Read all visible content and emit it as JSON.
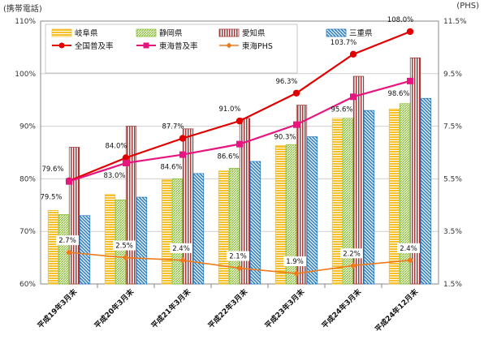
{
  "units": {
    "left": "(携帯電話)",
    "right": "(PHS)"
  },
  "colors": {
    "gifu": "#f5c02a",
    "shizuoka": "#8fc23f",
    "aichi": "#a33a3a",
    "mie": "#2f7fc1",
    "national": "#e00000",
    "tokai": "#e6157f",
    "tokai_phs": "#ee7a1b"
  },
  "chart_data": {
    "type": "bar",
    "categories": [
      "平成19年3月末",
      "平成20年3月末",
      "平成21年3月末",
      "平成22年3月末",
      "平成23年3月末",
      "平成24年3月末",
      "平成24年12月末"
    ],
    "ylim": [
      60,
      110
    ],
    "y_ticks": [
      "60%",
      "70%",
      "80%",
      "90%",
      "100%",
      "110%"
    ],
    "y2lim": [
      1.5,
      11.5
    ],
    "y2_ticks": [
      "1.5%",
      "3.5%",
      "5.5%",
      "7.5%",
      "9.5%",
      "11.5%"
    ],
    "grid": true,
    "legend_position": "top",
    "series": [
      {
        "name": "岐阜県",
        "key": "gifu",
        "kind": "bar",
        "axis": "left",
        "values": [
          74.0,
          77.0,
          79.8,
          81.5,
          86.3,
          91.5,
          93.3
        ]
      },
      {
        "name": "静岡県",
        "key": "shizuoka",
        "kind": "bar",
        "axis": "left",
        "values": [
          73.2,
          76.0,
          80.0,
          82.0,
          86.5,
          91.5,
          94.3
        ]
      },
      {
        "name": "愛知県",
        "key": "aichi",
        "kind": "bar",
        "axis": "left",
        "values": [
          86.0,
          90.0,
          89.5,
          91.5,
          94.0,
          99.5,
          103.0
        ]
      },
      {
        "name": "三重県",
        "key": "mie",
        "kind": "bar",
        "axis": "left",
        "values": [
          73.0,
          76.5,
          81.0,
          83.3,
          88.0,
          93.0,
          95.3
        ]
      },
      {
        "name": "全国普及率",
        "key": "national",
        "kind": "line",
        "axis": "left",
        "values": [
          79.6,
          84.0,
          87.7,
          91.0,
          96.3,
          103.7,
          108.0
        ],
        "labels": [
          "79.6%",
          "84.0%",
          "87.7%",
          "91.0%",
          "96.3%",
          "103.7%",
          "108.0%"
        ]
      },
      {
        "name": "東海普及率",
        "key": "tokai",
        "kind": "line",
        "axis": "left",
        "values": [
          79.5,
          83.0,
          84.6,
          86.6,
          90.3,
          95.6,
          98.6
        ],
        "labels": [
          "79.5%",
          "83.0%",
          "84.6%",
          "86.6%",
          "90.3%",
          "95.6%",
          "98.6%"
        ]
      },
      {
        "name": "東海PHS",
        "key": "tokai_phs",
        "kind": "line",
        "axis": "right",
        "values": [
          2.7,
          2.5,
          2.4,
          2.1,
          1.9,
          2.2,
          2.4
        ],
        "labels": [
          "2.7%",
          "2.5%",
          "2.4%",
          "2.1%",
          "1.9%",
          "2.2%",
          "2.4%"
        ]
      }
    ]
  }
}
